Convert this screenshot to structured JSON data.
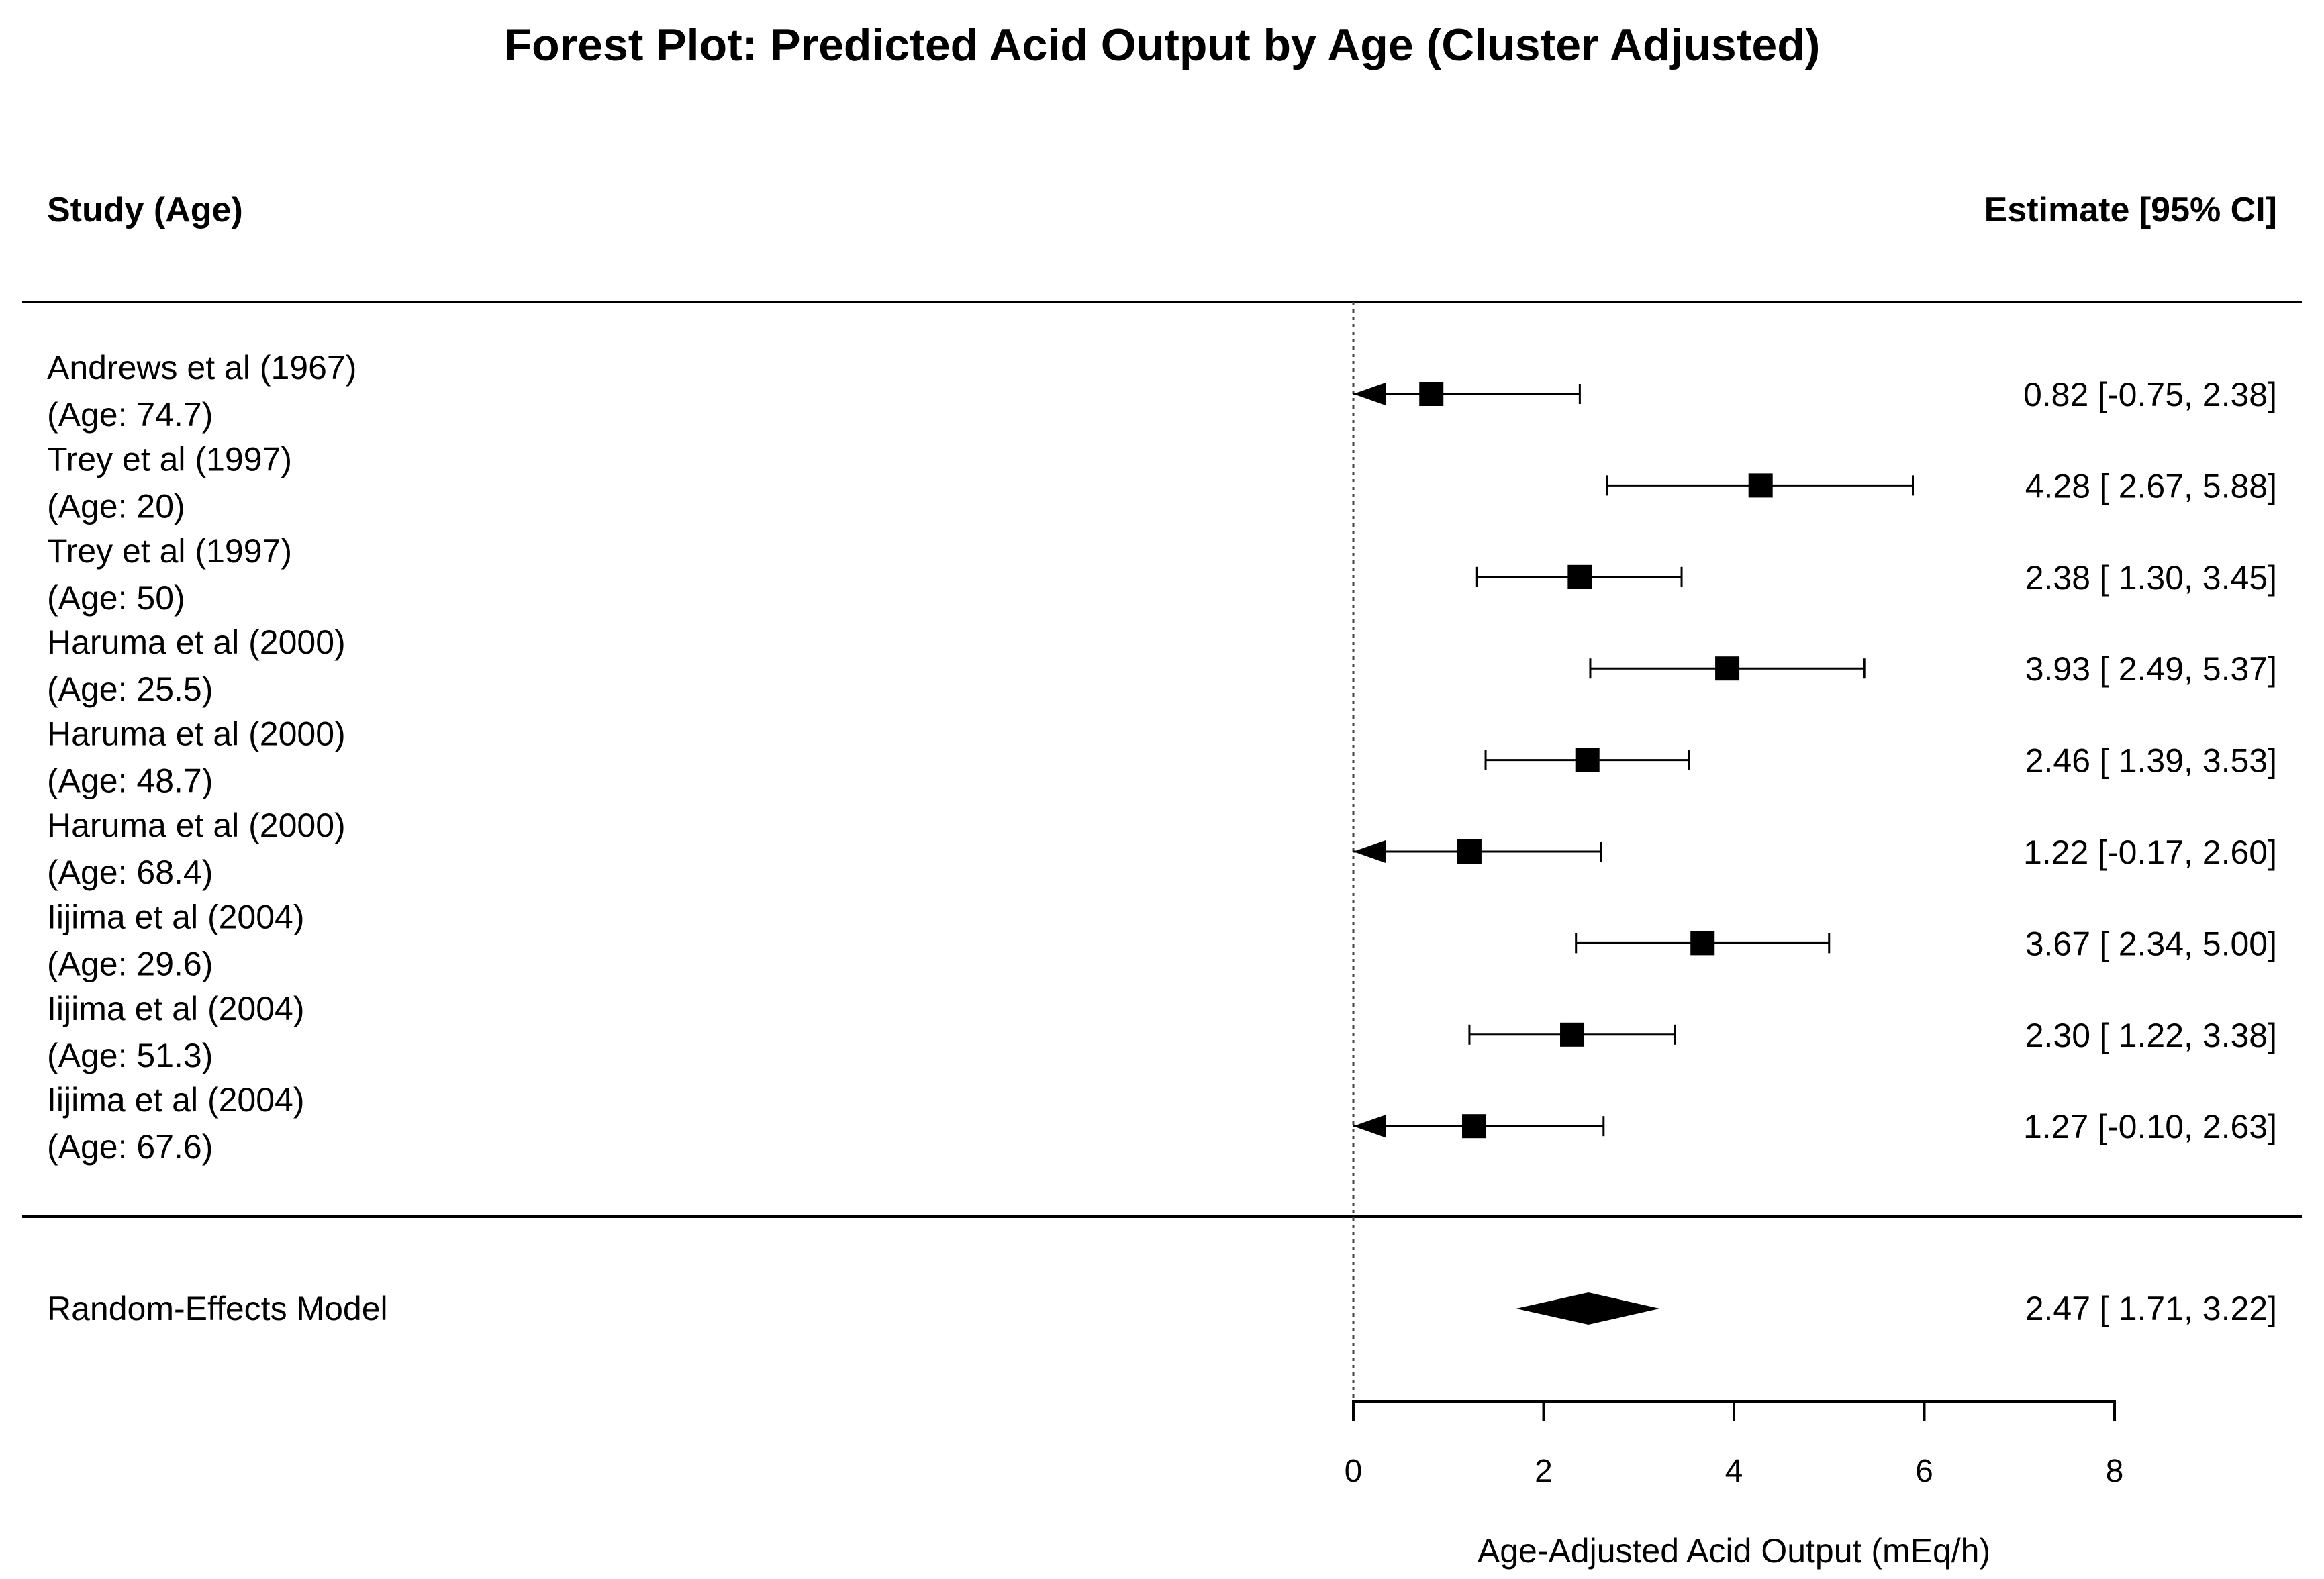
{
  "chart_data": {
    "type": "forest",
    "title": "Forest Plot: Predicted Acid Output by Age (Cluster Adjusted)",
    "left_header": "Study (Age)",
    "right_header": "Estimate [95% CI]",
    "xlabel": "Age-Adjusted Acid Output (mEq/h)",
    "xlim": [
      0,
      8
    ],
    "xticks": [
      0,
      2,
      4,
      6,
      8
    ],
    "xtick_labels": [
      "0",
      "2",
      "4",
      "6",
      "8"
    ],
    "reference_line": 0,
    "studies": [
      {
        "name": "Andrews et al (1967)",
        "age_label": "(Age: 74.7)",
        "estimate": 0.82,
        "lower": -0.75,
        "upper": 2.38,
        "ci_text": "0.82 [-0.75, 2.38]"
      },
      {
        "name": "Trey et al (1997)",
        "age_label": "(Age: 20)",
        "estimate": 4.28,
        "lower": 2.67,
        "upper": 5.88,
        "ci_text": "4.28 [ 2.67, 5.88]"
      },
      {
        "name": "Trey et al (1997)",
        "age_label": "(Age: 50)",
        "estimate": 2.38,
        "lower": 1.3,
        "upper": 3.45,
        "ci_text": "2.38 [ 1.30, 3.45]"
      },
      {
        "name": "Haruma et al (2000)",
        "age_label": "(Age: 25.5)",
        "estimate": 3.93,
        "lower": 2.49,
        "upper": 5.37,
        "ci_text": "3.93 [ 2.49, 5.37]"
      },
      {
        "name": "Haruma et al (2000)",
        "age_label": "(Age: 48.7)",
        "estimate": 2.46,
        "lower": 1.39,
        "upper": 3.53,
        "ci_text": "2.46 [ 1.39, 3.53]"
      },
      {
        "name": "Haruma et al (2000)",
        "age_label": "(Age: 68.4)",
        "estimate": 1.22,
        "lower": -0.17,
        "upper": 2.6,
        "ci_text": "1.22 [-0.17, 2.60]"
      },
      {
        "name": "Iijima et al (2004)",
        "age_label": "(Age: 29.6)",
        "estimate": 3.67,
        "lower": 2.34,
        "upper": 5.0,
        "ci_text": "3.67 [ 2.34, 5.00]"
      },
      {
        "name": "Iijima et al (2004)",
        "age_label": "(Age: 51.3)",
        "estimate": 2.3,
        "lower": 1.22,
        "upper": 3.38,
        "ci_text": "2.30 [ 1.22, 3.38]"
      },
      {
        "name": "Iijima et al (2004)",
        "age_label": "(Age: 67.6)",
        "estimate": 1.27,
        "lower": -0.1,
        "upper": 2.63,
        "ci_text": "1.27 [-0.10, 2.63]"
      }
    ],
    "summary": {
      "name": "Random-Effects Model",
      "estimate": 2.47,
      "lower": 1.71,
      "upper": 3.22,
      "ci_text": "2.47 [ 1.71, 3.22]"
    },
    "colors": {
      "marker": "#000000",
      "line": "#000000",
      "reference_line": "#444444",
      "background": "#ffffff"
    }
  }
}
